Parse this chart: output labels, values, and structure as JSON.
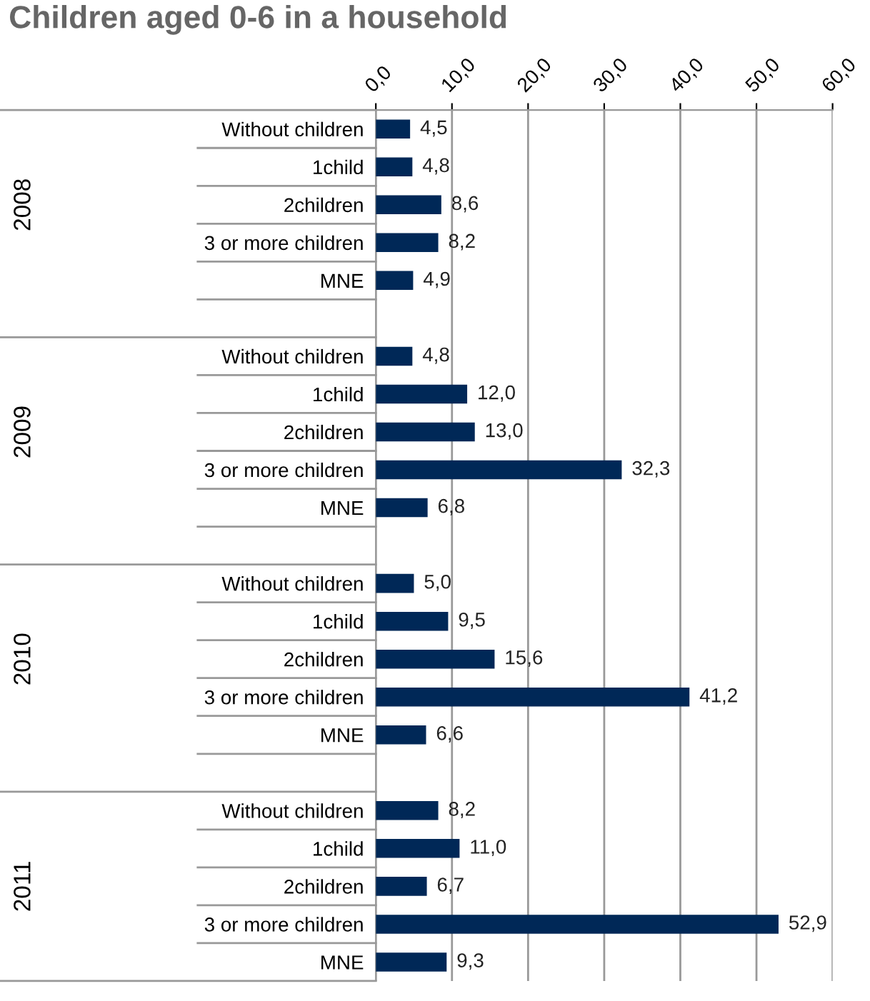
{
  "chart_data": {
    "type": "bar",
    "orientation": "horizontal",
    "title": "Children aged 0-6 in a household",
    "categories": [
      "Without children",
      "1child",
      "2children",
      "3 or more children",
      "MNE",
      null,
      "Without children",
      "1child",
      "2children",
      "3 or more children",
      "MNE",
      null,
      "Without children",
      "1child",
      "2children",
      "3 or more children",
      "MNE",
      null,
      "Without children",
      "1child",
      "2children",
      "3 or more children",
      "MNE"
    ],
    "values": [
      4.5,
      4.8,
      8.6,
      8.2,
      4.9,
      null,
      4.8,
      12.0,
      13.0,
      32.3,
      6.8,
      null,
      5.0,
      9.5,
      15.6,
      41.2,
      6.6,
      null,
      8.2,
      11.0,
      6.7,
      52.9,
      9.3
    ],
    "value_labels": [
      "4,5",
      "4,8",
      "8,6",
      "8,2",
      "4,9",
      null,
      "4,8",
      "12,0",
      "13,0",
      "32,3",
      "6,8",
      null,
      "5,0",
      "9,5",
      "15,6",
      "41,2",
      "6,6",
      null,
      "8,2",
      "11,0",
      "6,7",
      "52,9",
      "9,3"
    ],
    "color": "#002857",
    "annotations": [
      "2008",
      "2009",
      "2010",
      "2011"
    ],
    "xlim": [
      0,
      60
    ],
    "xticks": [
      {
        "value": 0,
        "label": "0,0"
      },
      {
        "value": 10,
        "label": "10,0"
      },
      {
        "value": 20,
        "label": "20,0"
      },
      {
        "value": 30,
        "label": "30,0"
      },
      {
        "value": 40,
        "label": "40,0"
      },
      {
        "value": 50,
        "label": "50,0"
      },
      {
        "value": 60,
        "label": "60,0"
      }
    ],
    "grid": "x"
  }
}
